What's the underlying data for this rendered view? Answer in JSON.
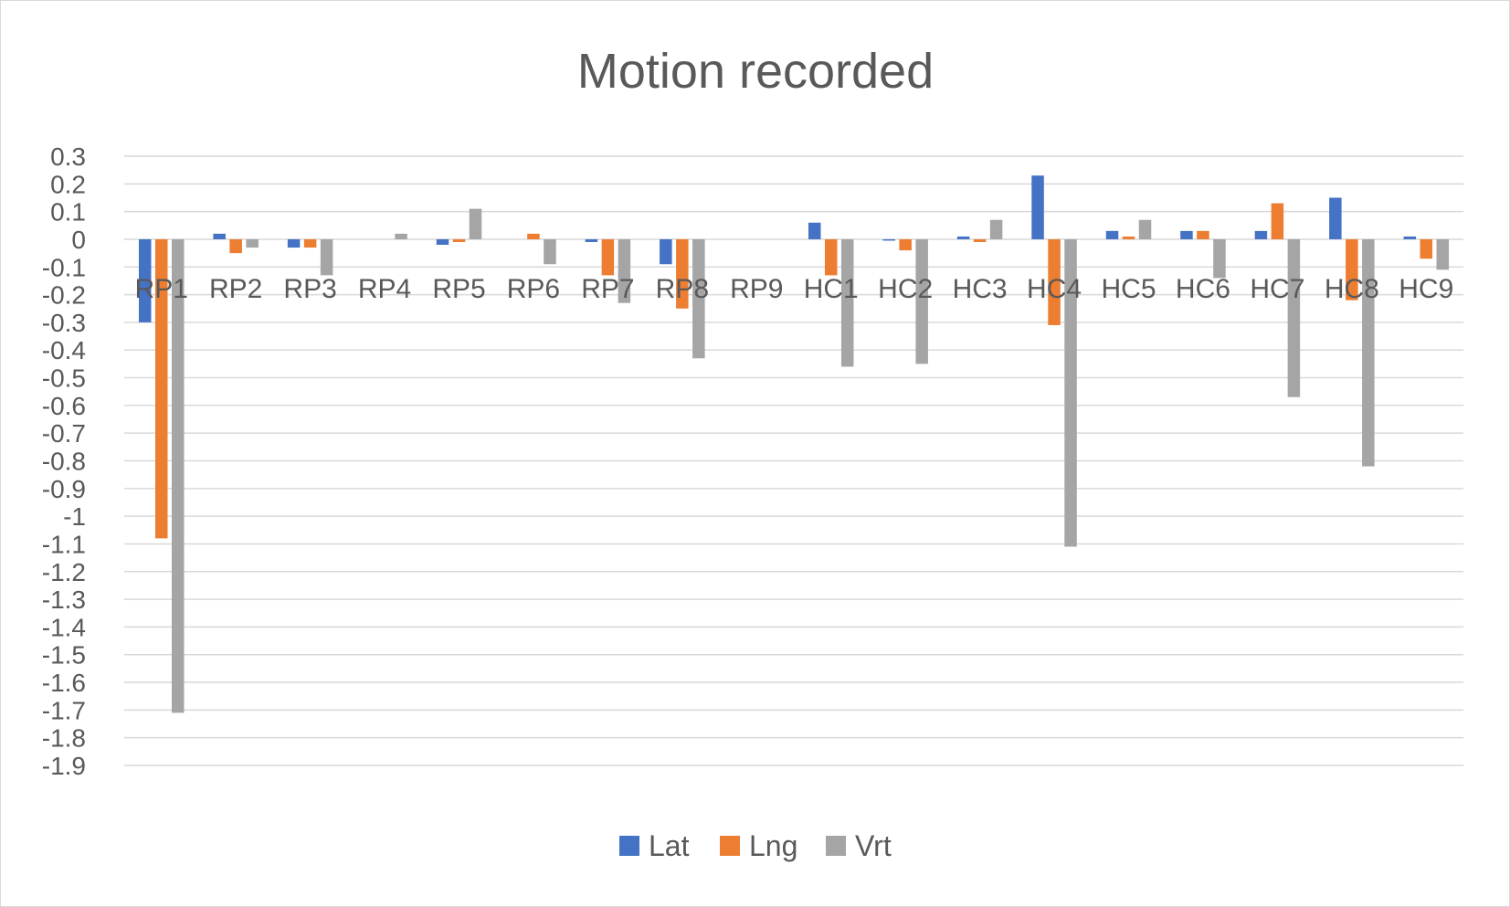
{
  "chart_data": {
    "type": "bar",
    "title": "Motion recorded",
    "categories": [
      "RP1",
      "RP2",
      "RP3",
      "RP4",
      "RP5",
      "RP6",
      "RP7",
      "RP8",
      "RP9",
      "HC1",
      "HC2",
      "HC3",
      "HC4",
      "HC5",
      "HC6",
      "HC7",
      "HC8",
      "HC9"
    ],
    "series": [
      {
        "name": "Lat",
        "color": "#4472c4",
        "values": [
          -0.3,
          0.02,
          -0.03,
          0,
          -0.02,
          0,
          -0.01,
          -0.09,
          0,
          0.06,
          -0.005,
          0.01,
          0.23,
          0.03,
          0.03,
          0.03,
          0.15,
          0.01
        ]
      },
      {
        "name": "Lng",
        "color": "#ed7d31",
        "values": [
          -1.08,
          -0.05,
          -0.03,
          0,
          -0.01,
          0.02,
          -0.13,
          -0.25,
          0,
          -0.13,
          -0.04,
          -0.01,
          -0.31,
          0.01,
          0.03,
          0.13,
          -0.22,
          -0.07
        ]
      },
      {
        "name": "Vrt",
        "color": "#a5a5a5",
        "values": [
          -1.71,
          -0.03,
          -0.13,
          0.02,
          0.11,
          -0.09,
          -0.23,
          -0.43,
          0,
          -0.46,
          -0.45,
          0.07,
          -1.11,
          0.07,
          -0.14,
          -0.57,
          -0.82,
          -0.11
        ]
      }
    ],
    "ylim": [
      -1.9,
      0.3
    ],
    "ytick_step": 0.1,
    "yticks": [
      "0.3",
      "0.2",
      "0.1",
      "0",
      "-0.1",
      "-0.2",
      "-0.3",
      "-0.4",
      "-0.5",
      "-0.6",
      "-0.7",
      "-0.8",
      "-0.9",
      "-1",
      "-1.1",
      "-1.2",
      "-1.3",
      "-1.4",
      "-1.5",
      "-1.6",
      "-1.7",
      "-1.8",
      "-1.9"
    ],
    "xlabel": "",
    "ylabel": "",
    "grid": true,
    "legend_position": "bottom"
  }
}
